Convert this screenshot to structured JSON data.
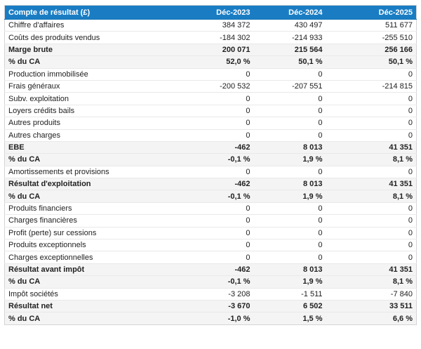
{
  "table": {
    "title_column": "Compte de résultat (£)",
    "columns": [
      "Déc-2023",
      "Déc-2024",
      "Déc-2025"
    ],
    "rows": [
      {
        "label": "Chiffre d'affaires",
        "values": [
          "384 372",
          "430 497",
          "511 677"
        ],
        "variant": "plain"
      },
      {
        "label": "Coûts des produits vendus",
        "values": [
          "-184 302",
          "-214 933",
          "-255 510"
        ],
        "variant": "plain"
      },
      {
        "label": "Marge brute",
        "values": [
          "200 071",
          "215 564",
          "256 166"
        ],
        "variant": "highlight"
      },
      {
        "label": "% du CA",
        "values": [
          "52,0 %",
          "50,1 %",
          "50,1 %"
        ],
        "variant": "highlight"
      },
      {
        "label": "Production immobilisée",
        "values": [
          "0",
          "0",
          "0"
        ],
        "variant": "plain"
      },
      {
        "label": "Frais généraux",
        "values": [
          "-200 532",
          "-207 551",
          "-214 815"
        ],
        "variant": "plain"
      },
      {
        "label": "Subv. exploitation",
        "values": [
          "0",
          "0",
          "0"
        ],
        "variant": "plain"
      },
      {
        "label": "Loyers crédits bails",
        "values": [
          "0",
          "0",
          "0"
        ],
        "variant": "plain"
      },
      {
        "label": "Autres produits",
        "values": [
          "0",
          "0",
          "0"
        ],
        "variant": "plain"
      },
      {
        "label": "Autres charges",
        "values": [
          "0",
          "0",
          "0"
        ],
        "variant": "plain"
      },
      {
        "label": "EBE",
        "values": [
          "-462",
          "8 013",
          "41 351"
        ],
        "variant": "highlight"
      },
      {
        "label": "% du CA",
        "values": [
          "-0,1 %",
          "1,9 %",
          "8,1 %"
        ],
        "variant": "highlight"
      },
      {
        "label": "Amortissements et provisions",
        "values": [
          "0",
          "0",
          "0"
        ],
        "variant": "plain"
      },
      {
        "label": "Résultat d'exploitation",
        "values": [
          "-462",
          "8 013",
          "41 351"
        ],
        "variant": "highlight"
      },
      {
        "label": "% du CA",
        "values": [
          "-0,1 %",
          "1,9 %",
          "8,1 %"
        ],
        "variant": "highlight"
      },
      {
        "label": "Produits financiers",
        "values": [
          "0",
          "0",
          "0"
        ],
        "variant": "plain"
      },
      {
        "label": "Charges financières",
        "values": [
          "0",
          "0",
          "0"
        ],
        "variant": "plain"
      },
      {
        "label": "Profit (perte) sur cessions",
        "values": [
          "0",
          "0",
          "0"
        ],
        "variant": "plain"
      },
      {
        "label": "Produits exceptionnels",
        "values": [
          "0",
          "0",
          "0"
        ],
        "variant": "plain"
      },
      {
        "label": "Charges exceptionnelles",
        "values": [
          "0",
          "0",
          "0"
        ],
        "variant": "plain"
      },
      {
        "label": "Résultat avant impôt",
        "values": [
          "-462",
          "8 013",
          "41 351"
        ],
        "variant": "highlight"
      },
      {
        "label": "% du CA",
        "values": [
          "-0,1 %",
          "1,9 %",
          "8,1 %"
        ],
        "variant": "highlight"
      },
      {
        "label": "Impôt sociétés",
        "values": [
          "-3 208",
          "-1 511",
          "-7 840"
        ],
        "variant": "plain"
      },
      {
        "label": "Résultat net",
        "values": [
          "-3 670",
          "6 502",
          "33 511"
        ],
        "variant": "highlight"
      },
      {
        "label": "% du CA",
        "values": [
          "-1,0 %",
          "1,5 %",
          "6,6 %"
        ],
        "variant": "highlight"
      }
    ]
  },
  "colors": {
    "header_bg": "#1a7dc4",
    "header_border": "#1571b3",
    "header_text": "#ffffff",
    "highlight_bg": "#f4f4f4",
    "outer_border": "#d4d4d4",
    "row_divider": "#e9e9e9",
    "text": "#212121",
    "page_bg": "#ffffff"
  }
}
